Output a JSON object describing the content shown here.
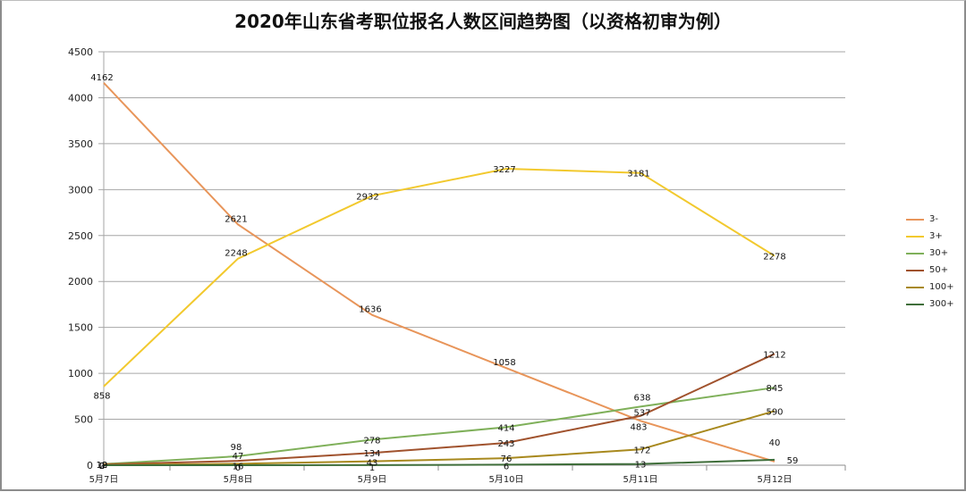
{
  "chart_data": {
    "type": "line",
    "title": "2020年山东省考职位报名人数区间趋势图（以资格初审为例）",
    "xlabel": "",
    "ylabel": "",
    "ylim": [
      0,
      4500
    ],
    "yticks": [
      0,
      500,
      1000,
      1500,
      2000,
      2500,
      3000,
      3500,
      4000,
      4500
    ],
    "grid": true,
    "legend_position": "right",
    "categories": [
      "5月7日",
      "5月8日",
      "5月9日",
      "5月10日",
      "5月11日",
      "5月12日"
    ],
    "series": [
      {
        "name": "3-",
        "color": "#e8955a",
        "values": [
          4162,
          2621,
          1636,
          1058,
          483,
          40
        ]
      },
      {
        "name": "3+",
        "color": "#f2c92e",
        "values": [
          858,
          2248,
          2932,
          3227,
          3181,
          2278
        ]
      },
      {
        "name": "30+",
        "color": "#7fb05a",
        "values": [
          12,
          98,
          278,
          414,
          638,
          845
        ]
      },
      {
        "name": "50+",
        "color": "#a0522d",
        "values": [
          10,
          47,
          134,
          243,
          537,
          1212
        ]
      },
      {
        "name": "100+",
        "color": "#a8891e",
        "values": [
          2,
          16,
          43,
          76,
          172,
          590
        ]
      },
      {
        "name": "300+",
        "color": "#3f6e3a",
        "values": [
          0,
          0,
          1,
          6,
          13,
          59
        ]
      }
    ]
  }
}
